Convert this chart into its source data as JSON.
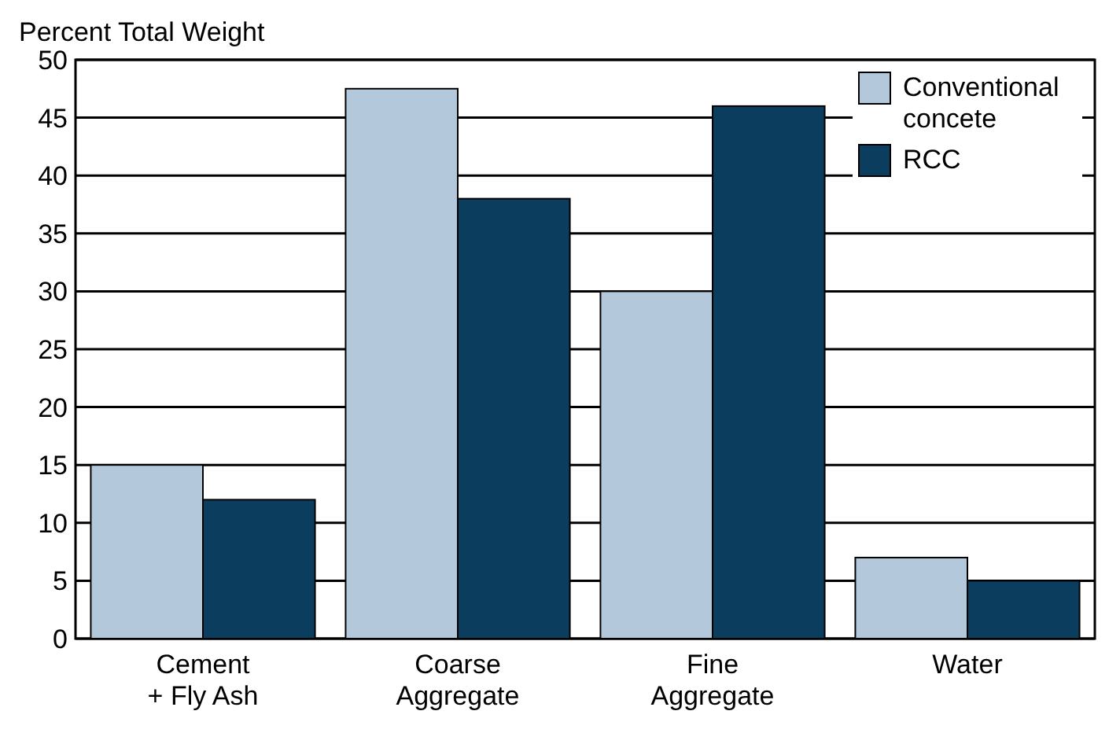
{
  "chart_data": {
    "type": "bar",
    "title": "Percent Total Weight",
    "categories": [
      "Cement\n+ Fly Ash",
      "Coarse\nAggregate",
      "Fine\nAggregate",
      "Water"
    ],
    "series": [
      {
        "name": "Conventional\nconcete",
        "color": "#b4c8dc",
        "values": [
          15,
          47.5,
          30,
          7
        ]
      },
      {
        "name": "RCC",
        "color": "#0b3d5e",
        "values": [
          12,
          38,
          46,
          5
        ]
      }
    ],
    "ylim": [
      0,
      50
    ],
    "yticks": [
      0,
      5,
      10,
      15,
      20,
      25,
      30,
      35,
      40,
      45,
      50
    ],
    "grid": "y",
    "legend": "top right"
  }
}
